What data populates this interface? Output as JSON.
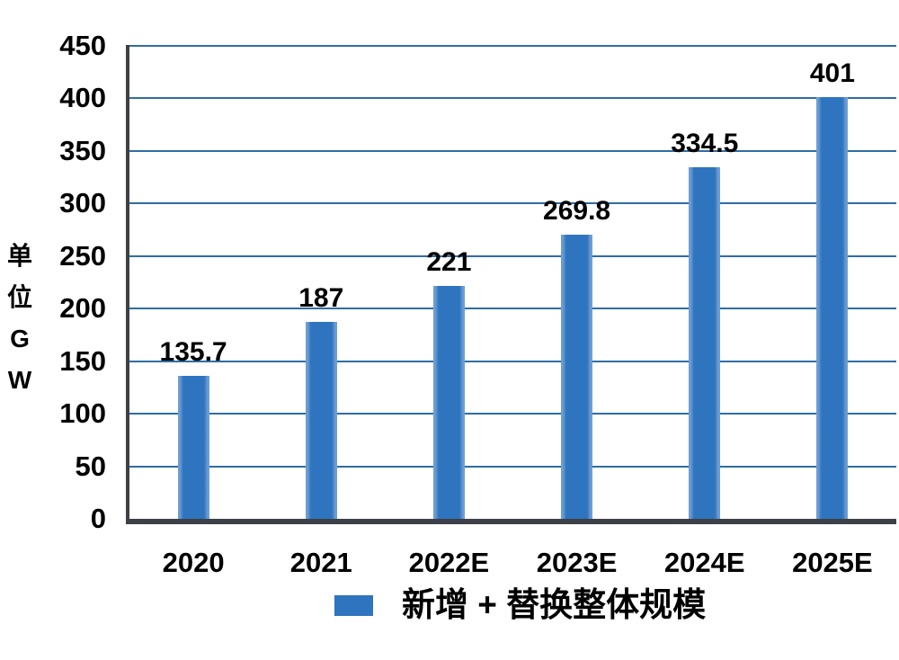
{
  "chart_data": {
    "type": "bar",
    "title": "",
    "categories": [
      "2020",
      "2021",
      "2022E",
      "2023E",
      "2024E",
      "2025E"
    ],
    "values": [
      135.7,
      187,
      221,
      269.8,
      334.5,
      401
    ],
    "value_labels": [
      "135.7",
      "187",
      "221",
      "269.8",
      "334.5",
      "401"
    ],
    "series_name": "新增 + 替换整体规模",
    "y_axis_title": "单位GW",
    "ylim": [
      0,
      450
    ],
    "yticks": [
      0,
      50,
      100,
      150,
      200,
      250,
      300,
      350,
      400,
      450
    ],
    "grid": true,
    "legend_position": "bottom",
    "bar_color": "#2E74BE",
    "bar_edge_color": "#6E9DD3",
    "gridline_color": "#2E6DA4",
    "axis_color": "#3D4046",
    "text_color": "#000000"
  }
}
